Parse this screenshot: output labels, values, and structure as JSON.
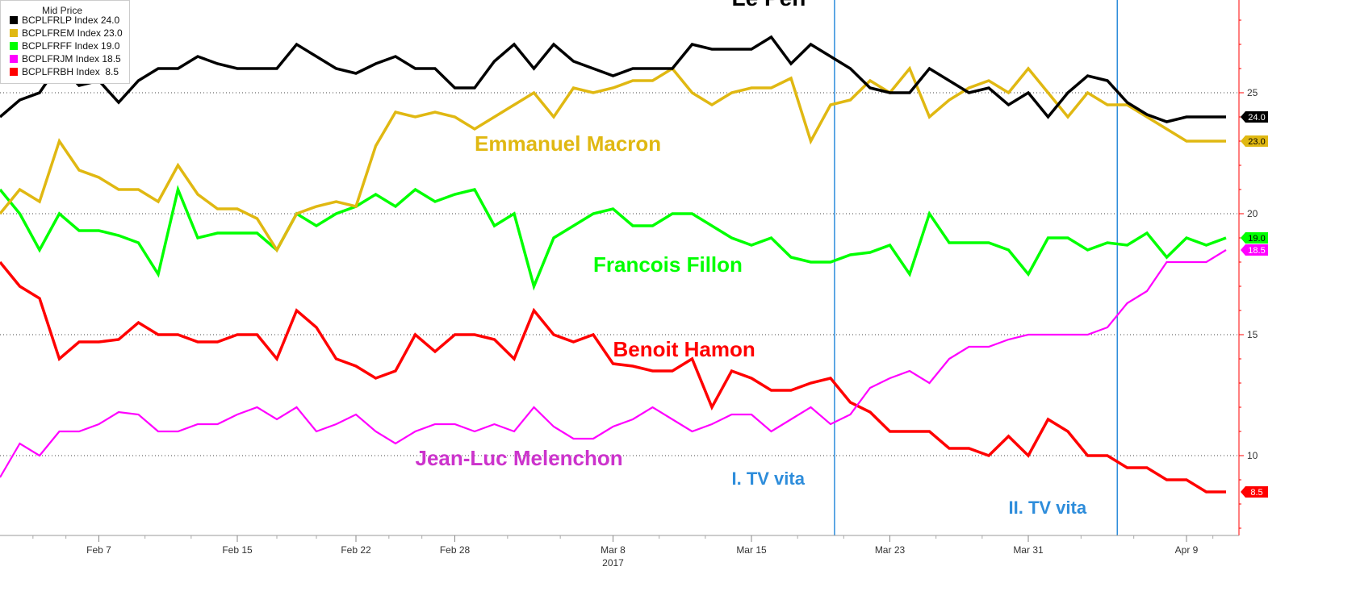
{
  "chart_data": {
    "type": "line",
    "title": "",
    "xlabel": "",
    "ylabel": "",
    "ylim": [
      6.7,
      31.8
    ],
    "grid": "horizontal-dotted",
    "legend": {
      "placement": "top-left",
      "title": "Mid Price",
      "entries": [
        {
          "label": "BCPLFRLP Index 24.0",
          "color": "#000000"
        },
        {
          "label": "BCPLFREM Index 23.0",
          "color": "#e0b812"
        },
        {
          "label": "BCPLFRFF Index 19.0",
          "color": "#00ff00"
        },
        {
          "label": "BCPLFRJM Index 18.5",
          "color": "#ff00ff"
        },
        {
          "label": "BCPLFRBH Index  8.5",
          "color": "#ff0000"
        }
      ]
    },
    "y_ticks": [
      10,
      15,
      20,
      25
    ],
    "x_ticks": [
      {
        "label": "Feb 7",
        "x": 5
      },
      {
        "label": "Feb 15",
        "x": 12
      },
      {
        "label": "Feb 22",
        "x": 18
      },
      {
        "label": "Feb 28",
        "x": 23
      },
      {
        "label": "Mar 8",
        "x": 31
      },
      {
        "label": "Mar 15",
        "x": 38
      },
      {
        "label": "Mar 23",
        "x": 45
      },
      {
        "label": "Mar 31",
        "x": 52
      },
      {
        "label": "Apr 9",
        "x": 60
      }
    ],
    "x_year_label": "2017",
    "x_range": [
      0,
      64
    ],
    "x_subdivisions": 3,
    "series": [
      {
        "name": "Le Pen",
        "ticker": "BCPLFRLP Index",
        "color": "#000000",
        "width": 3.5,
        "values": [
          24,
          24.7,
          25,
          26.2,
          25.3,
          25.5,
          24.6,
          25.5,
          26,
          26,
          26.5,
          26.2,
          26,
          26,
          26,
          27,
          26.5,
          26,
          25.8,
          26.2,
          26.5,
          26,
          26,
          25.2,
          25.2,
          26.3,
          27,
          26,
          27,
          26.3,
          26,
          25.7,
          26,
          26,
          26,
          27,
          26.8,
          26.8,
          26.8,
          27.3,
          26.2,
          27,
          26.5,
          26,
          25.2,
          25,
          25,
          26,
          25.5,
          25,
          25.2,
          24.5,
          25,
          24,
          25,
          25.7,
          25.5,
          24.6,
          24.1,
          23.8,
          24,
          24,
          24
        ]
      },
      {
        "name": "Emmanuel Macron",
        "ticker": "BCPLFREM Index",
        "color": "#e0b812",
        "width": 3.5,
        "values": [
          20,
          21,
          20.5,
          23,
          21.8,
          21.5,
          21,
          21,
          20.5,
          22,
          20.8,
          20.2,
          20.2,
          19.8,
          18.5,
          20,
          20.3,
          20.5,
          20.3,
          22.8,
          24.2,
          24,
          24.2,
          24,
          23.5,
          24,
          24.5,
          25,
          24,
          25.2,
          25,
          25.2,
          25.5,
          25.5,
          26,
          25,
          24.5,
          25,
          25.2,
          25.2,
          25.6,
          23,
          24.5,
          24.7,
          25.5,
          25,
          26,
          24,
          24.7,
          25.2,
          25.5,
          25,
          26,
          25,
          24,
          25,
          24.5,
          24.5,
          24,
          23.5,
          23,
          23,
          23
        ]
      },
      {
        "name": "Francois Fillon",
        "ticker": "BCPLFRFF Index",
        "color": "#00ff00",
        "width": 3.5,
        "values": [
          21,
          20,
          18.5,
          20,
          19.3,
          19.3,
          19.1,
          18.8,
          17.5,
          21,
          19,
          19.2,
          19.2,
          19.2,
          18.5,
          20,
          19.5,
          20,
          20.3,
          20.8,
          20.3,
          21,
          20.5,
          20.8,
          21,
          19.5,
          20,
          17,
          19,
          19.5,
          20,
          20.2,
          19.5,
          19.5,
          20,
          20,
          19.5,
          19,
          18.7,
          19,
          18.2,
          18,
          18,
          18.3,
          18.4,
          18.7,
          17.5,
          20,
          18.8,
          18.8,
          18.8,
          18.5,
          17.5,
          19,
          19,
          18.5,
          18.8,
          18.7,
          19.2,
          18.2,
          19,
          18.7,
          19
        ]
      },
      {
        "name": "Jean-Luc Melenchon",
        "ticker": "BCPLFRJM Index",
        "color": "#ff00ff",
        "width": 2.2,
        "values": [
          9.1,
          10.5,
          10,
          11,
          11,
          11.3,
          11.8,
          11.7,
          11,
          11,
          11.3,
          11.3,
          11.7,
          12,
          11.5,
          12,
          11,
          11.3,
          11.7,
          11,
          10.5,
          11,
          11.3,
          11.3,
          11,
          11.3,
          11,
          12,
          11.2,
          10.7,
          10.7,
          11.2,
          11.5,
          12,
          11.5,
          11,
          11.3,
          11.7,
          11.7,
          11,
          11.5,
          12,
          11.3,
          11.7,
          12.8,
          13.2,
          13.5,
          13,
          14,
          14.5,
          14.5,
          14.8,
          15,
          15,
          15,
          15,
          15.3,
          16.3,
          16.8,
          18,
          18,
          18,
          18.5
        ]
      },
      {
        "name": "Benoit Hamon",
        "ticker": "BCPLFRBH Index",
        "color": "#ff0000",
        "width": 3.5,
        "values": [
          18,
          17,
          16.5,
          14,
          14.7,
          14.7,
          14.8,
          15.5,
          15,
          15,
          14.7,
          14.7,
          15,
          15,
          14,
          16,
          15.3,
          14,
          13.7,
          13.2,
          13.5,
          15,
          14.3,
          15,
          15,
          14.8,
          14,
          16,
          15,
          14.7,
          15,
          13.8,
          13.7,
          13.5,
          13.5,
          14,
          12,
          13.5,
          13.2,
          12.7,
          12.7,
          13,
          13.2,
          12.2,
          11.8,
          11,
          11,
          11,
          10.3,
          10.3,
          10,
          10.8,
          10,
          11.5,
          11,
          10,
          10,
          9.5,
          9.5,
          9,
          9,
          8.5,
          8.5
        ]
      }
    ],
    "vertical_lines": [
      {
        "x": 42.2,
        "color": "#2e8ddb"
      },
      {
        "x": 56.5,
        "color": "#2e8ddb"
      }
    ],
    "annotations": [
      {
        "text": "Le Pen",
        "x": 37.0,
        "y": 28.6,
        "color": "#000000",
        "size": 28
      },
      {
        "text": "Emmanuel Macron",
        "x": 24.0,
        "y": 22.6,
        "color": "#e0b812",
        "size": 26
      },
      {
        "text": "Francois Fillon",
        "x": 30.0,
        "y": 17.6,
        "color": "#00ff00",
        "size": 26
      },
      {
        "text": "Benoit Hamon",
        "x": 31.0,
        "y": 14.1,
        "color": "#ff0000",
        "size": 26
      },
      {
        "text": "Jean-Luc Melenchon",
        "x": 21.0,
        "y": 9.6,
        "color": "#cc33cc",
        "size": 26
      },
      {
        "text": "I. TV vita",
        "x": 37.0,
        "y": 8.8,
        "color": "#2e8ddb",
        "size": 22
      },
      {
        "text": "II. TV vita",
        "x": 51.0,
        "y": 7.6,
        "color": "#2e8ddb",
        "size": 22
      }
    ],
    "end_labels": [
      {
        "text": "24.0",
        "value": 24,
        "bg": "#000000",
        "fg": "#ffffff"
      },
      {
        "text": "23.0",
        "value": 23,
        "bg": "#e0b812",
        "fg": "#000000"
      },
      {
        "text": "19.0",
        "value": 19,
        "bg": "#00ff00",
        "fg": "#000000"
      },
      {
        "text": "18.5",
        "value": 18.5,
        "bg": "#ff00ff",
        "fg": "#ffffff"
      },
      {
        "text": "8.5",
        "value": 8.5,
        "bg": "#ff0000",
        "fg": "#ffffff"
      }
    ],
    "colors": {
      "grid": "#444444",
      "axis": "#ff0000",
      "tick_text": "#333333"
    }
  }
}
